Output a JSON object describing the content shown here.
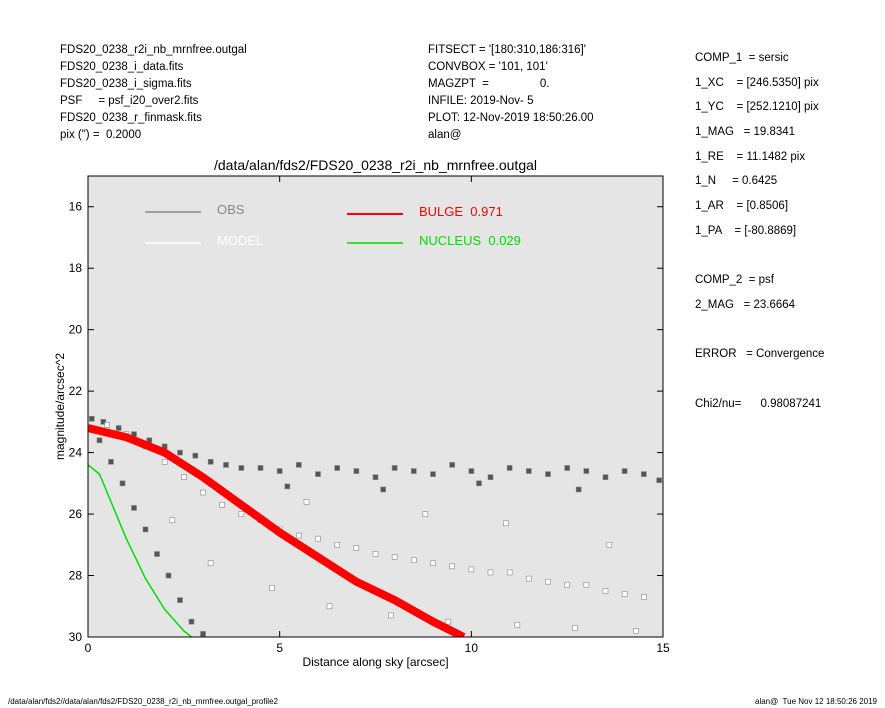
{
  "header": {
    "left": [
      "FDS20_0238_r2i_nb_mrnfree.outgal",
      "FDS20_0238_i_data.fits",
      "FDS20_0238_i_sigma.fits",
      "PSF     = psf_i20_over2.fits",
      "FDS20_0238_r_finmask.fits",
      "pix (\") =  0.2000"
    ],
    "middle": [
      "FITSECT = '[180:310,186:316]'",
      "CONVBOX = '101, 101'",
      "MAGZPT  =                0.",
      "INFILE: 2019-Nov- 5",
      "PLOT: 12-Nov-2019 18:50:26.00",
      "alan@"
    ],
    "right": [
      "COMP_1  = sersic",
      "1_XC    = [246.5350] pix",
      "1_YC    = [252.1210] pix",
      "1_MAG   = 19.8341",
      "1_RE    = 11.1482 pix",
      "1_N     = 0.6425",
      "1_AR    = [0.8506]",
      "1_PA    = [-80.8869]",
      "",
      "COMP_2  = psf",
      "2_MAG   = 23.6664",
      "",
      "ERROR   = Convergence",
      "",
      "Chi2/nu=      0.98087241"
    ]
  },
  "footer": {
    "left": "/data/alan/fds2//data/alan/fds2/FDS20_0238_r2i_nb_mrnfree.outgal_profile2",
    "right": "alan@  Tue Nov 12 18:50:26 2019"
  },
  "chart_data": {
    "type": "scatter",
    "title": "/data/alan/fds2/FDS20_0238_r2i_nb_mrnfree.outgal",
    "x_label": "Distance along sky [arcsec]",
    "y_label": "magnitude/arcsec^2",
    "xlim": [
      0,
      15
    ],
    "ylim": [
      30,
      15
    ],
    "xticks": [
      0,
      5,
      10,
      15
    ],
    "yticks": [
      16,
      18,
      20,
      22,
      24,
      26,
      28,
      30
    ],
    "background": "#e5e5e5",
    "series": [
      {
        "name": "OBS",
        "color": "#555555",
        "kind": "points",
        "x": [
          0.1,
          0.4,
          0.8,
          1.2,
          1.6,
          2.0,
          2.4,
          2.8,
          3.2,
          3.6,
          4.0,
          4.5,
          5.0,
          5.5,
          6.0,
          6.5,
          7.0,
          7.5,
          8.0,
          8.5,
          9.0,
          9.5,
          10.0,
          10.5,
          11.0,
          11.5,
          12.0,
          12.5,
          13.0,
          13.5,
          14.0,
          14.5,
          14.9,
          0.3,
          0.6,
          0.9,
          1.2,
          1.5,
          1.8,
          2.1,
          2.4,
          2.7,
          3.0,
          5.2,
          7.7,
          10.2,
          12.8
        ],
        "values": [
          22.9,
          23.0,
          23.2,
          23.4,
          23.6,
          23.8,
          24.0,
          24.1,
          24.3,
          24.4,
          24.5,
          24.5,
          24.6,
          24.4,
          24.7,
          24.5,
          24.6,
          24.8,
          24.5,
          24.6,
          24.7,
          24.4,
          24.6,
          24.8,
          24.5,
          24.6,
          24.7,
          24.5,
          24.6,
          24.8,
          24.6,
          24.7,
          24.9,
          23.6,
          24.3,
          25.0,
          25.8,
          26.5,
          27.3,
          28.0,
          28.8,
          29.5,
          29.9,
          25.1,
          25.2,
          25.0,
          25.2
        ]
      },
      {
        "name": "MODEL",
        "color": "#ffffff",
        "kind": "points",
        "x": [
          0.5,
          1.0,
          1.5,
          2.0,
          2.5,
          3.0,
          3.5,
          4.0,
          4.5,
          5.0,
          5.5,
          6.0,
          6.5,
          7.0,
          7.5,
          8.0,
          8.5,
          9.0,
          9.5,
          10.0,
          10.5,
          11.0,
          11.5,
          12.0,
          12.5,
          13.0,
          13.5,
          14.0,
          14.5,
          3.2,
          4.8,
          6.3,
          7.9,
          9.4,
          11.2,
          12.7,
          14.3,
          2.2,
          5.7,
          8.8,
          10.9,
          13.6
        ],
        "values": [
          23.1,
          23.4,
          23.8,
          24.3,
          24.8,
          25.3,
          25.7,
          26.0,
          26.2,
          26.5,
          26.7,
          26.8,
          27.0,
          27.1,
          27.3,
          27.4,
          27.5,
          27.6,
          27.7,
          27.8,
          27.9,
          27.9,
          28.1,
          28.2,
          28.3,
          28.3,
          28.5,
          28.6,
          28.7,
          27.6,
          28.4,
          29.0,
          29.3,
          29.5,
          29.6,
          29.7,
          29.8,
          26.2,
          25.6,
          26.0,
          26.3,
          27.0
        ]
      },
      {
        "name": "BULGE  0.971",
        "color": "#ff0000",
        "kind": "line",
        "x": [
          0,
          1,
          2,
          3,
          4,
          5,
          6,
          7,
          8,
          9,
          9.8
        ],
        "values": [
          23.2,
          23.5,
          24.0,
          24.8,
          25.7,
          26.6,
          27.4,
          28.2,
          28.8,
          29.5,
          30
        ]
      },
      {
        "name": "NUCLEUS  0.029",
        "color": "#00dd00",
        "kind": "line",
        "x": [
          0,
          0.3,
          0.6,
          1.0,
          1.5,
          2.0,
          2.5,
          2.7
        ],
        "values": [
          24.4,
          24.7,
          25.6,
          26.8,
          28.1,
          29.1,
          29.8,
          30
        ]
      }
    ]
  }
}
